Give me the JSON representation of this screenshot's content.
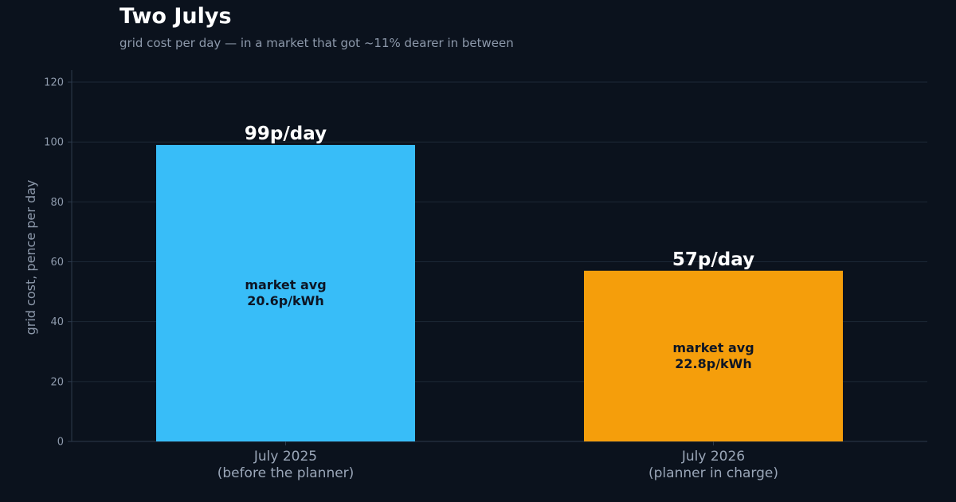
{
  "colors": {
    "background": "#0b121d",
    "grid": "#1c2836",
    "axis": "#2c3a4c",
    "text_muted": "#8d99ab"
  },
  "chart_data": {
    "type": "bar",
    "title": "Two Julys",
    "subtitle": "grid cost per day — in a market that got ~11% dearer in between",
    "ylabel": "grid cost, pence per day",
    "xlabel": "",
    "ylim": [
      0,
      124
    ],
    "yticks": [
      0,
      20,
      40,
      60,
      80,
      100,
      120
    ],
    "grid": true,
    "categories": [
      [
        "July 2025",
        "(before the planner)"
      ],
      [
        "July 2026",
        "(planner in charge)"
      ]
    ],
    "values": [
      99,
      57
    ],
    "bar_colors": [
      "#38bdf8",
      "#f59e0b"
    ],
    "value_labels": [
      "99p/day",
      "57p/day"
    ],
    "bar_annotations": [
      [
        "market avg",
        "20.6p/kWh"
      ],
      [
        "market avg",
        "22.8p/kWh"
      ]
    ]
  }
}
